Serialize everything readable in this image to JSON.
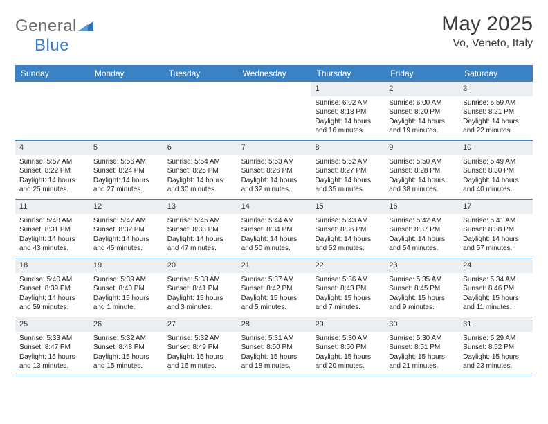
{
  "logo": {
    "part1": "General",
    "part2": "Blue"
  },
  "title": "May 2025",
  "location": "Vo, Veneto, Italy",
  "header_bg": "#3b82c4",
  "daynum_bg": "#eceff1",
  "border_color": "#3b82c4",
  "weekdays": [
    "Sunday",
    "Monday",
    "Tuesday",
    "Wednesday",
    "Thursday",
    "Friday",
    "Saturday"
  ],
  "cells": [
    {
      "day": "",
      "lines": []
    },
    {
      "day": "",
      "lines": []
    },
    {
      "day": "",
      "lines": []
    },
    {
      "day": "",
      "lines": []
    },
    {
      "day": "1",
      "lines": [
        "Sunrise: 6:02 AM",
        "Sunset: 8:18 PM",
        "Daylight: 14 hours",
        "and 16 minutes."
      ]
    },
    {
      "day": "2",
      "lines": [
        "Sunrise: 6:00 AM",
        "Sunset: 8:20 PM",
        "Daylight: 14 hours",
        "and 19 minutes."
      ]
    },
    {
      "day": "3",
      "lines": [
        "Sunrise: 5:59 AM",
        "Sunset: 8:21 PM",
        "Daylight: 14 hours",
        "and 22 minutes."
      ]
    },
    {
      "day": "4",
      "lines": [
        "Sunrise: 5:57 AM",
        "Sunset: 8:22 PM",
        "Daylight: 14 hours",
        "and 25 minutes."
      ]
    },
    {
      "day": "5",
      "lines": [
        "Sunrise: 5:56 AM",
        "Sunset: 8:24 PM",
        "Daylight: 14 hours",
        "and 27 minutes."
      ]
    },
    {
      "day": "6",
      "lines": [
        "Sunrise: 5:54 AM",
        "Sunset: 8:25 PM",
        "Daylight: 14 hours",
        "and 30 minutes."
      ]
    },
    {
      "day": "7",
      "lines": [
        "Sunrise: 5:53 AM",
        "Sunset: 8:26 PM",
        "Daylight: 14 hours",
        "and 32 minutes."
      ]
    },
    {
      "day": "8",
      "lines": [
        "Sunrise: 5:52 AM",
        "Sunset: 8:27 PM",
        "Daylight: 14 hours",
        "and 35 minutes."
      ]
    },
    {
      "day": "9",
      "lines": [
        "Sunrise: 5:50 AM",
        "Sunset: 8:28 PM",
        "Daylight: 14 hours",
        "and 38 minutes."
      ]
    },
    {
      "day": "10",
      "lines": [
        "Sunrise: 5:49 AM",
        "Sunset: 8:30 PM",
        "Daylight: 14 hours",
        "and 40 minutes."
      ]
    },
    {
      "day": "11",
      "lines": [
        "Sunrise: 5:48 AM",
        "Sunset: 8:31 PM",
        "Daylight: 14 hours",
        "and 43 minutes."
      ]
    },
    {
      "day": "12",
      "lines": [
        "Sunrise: 5:47 AM",
        "Sunset: 8:32 PM",
        "Daylight: 14 hours",
        "and 45 minutes."
      ]
    },
    {
      "day": "13",
      "lines": [
        "Sunrise: 5:45 AM",
        "Sunset: 8:33 PM",
        "Daylight: 14 hours",
        "and 47 minutes."
      ]
    },
    {
      "day": "14",
      "lines": [
        "Sunrise: 5:44 AM",
        "Sunset: 8:34 PM",
        "Daylight: 14 hours",
        "and 50 minutes."
      ]
    },
    {
      "day": "15",
      "lines": [
        "Sunrise: 5:43 AM",
        "Sunset: 8:36 PM",
        "Daylight: 14 hours",
        "and 52 minutes."
      ]
    },
    {
      "day": "16",
      "lines": [
        "Sunrise: 5:42 AM",
        "Sunset: 8:37 PM",
        "Daylight: 14 hours",
        "and 54 minutes."
      ]
    },
    {
      "day": "17",
      "lines": [
        "Sunrise: 5:41 AM",
        "Sunset: 8:38 PM",
        "Daylight: 14 hours",
        "and 57 minutes."
      ]
    },
    {
      "day": "18",
      "lines": [
        "Sunrise: 5:40 AM",
        "Sunset: 8:39 PM",
        "Daylight: 14 hours",
        "and 59 minutes."
      ]
    },
    {
      "day": "19",
      "lines": [
        "Sunrise: 5:39 AM",
        "Sunset: 8:40 PM",
        "Daylight: 15 hours",
        "and 1 minute."
      ]
    },
    {
      "day": "20",
      "lines": [
        "Sunrise: 5:38 AM",
        "Sunset: 8:41 PM",
        "Daylight: 15 hours",
        "and 3 minutes."
      ]
    },
    {
      "day": "21",
      "lines": [
        "Sunrise: 5:37 AM",
        "Sunset: 8:42 PM",
        "Daylight: 15 hours",
        "and 5 minutes."
      ]
    },
    {
      "day": "22",
      "lines": [
        "Sunrise: 5:36 AM",
        "Sunset: 8:43 PM",
        "Daylight: 15 hours",
        "and 7 minutes."
      ]
    },
    {
      "day": "23",
      "lines": [
        "Sunrise: 5:35 AM",
        "Sunset: 8:45 PM",
        "Daylight: 15 hours",
        "and 9 minutes."
      ]
    },
    {
      "day": "24",
      "lines": [
        "Sunrise: 5:34 AM",
        "Sunset: 8:46 PM",
        "Daylight: 15 hours",
        "and 11 minutes."
      ]
    },
    {
      "day": "25",
      "lines": [
        "Sunrise: 5:33 AM",
        "Sunset: 8:47 PM",
        "Daylight: 15 hours",
        "and 13 minutes."
      ]
    },
    {
      "day": "26",
      "lines": [
        "Sunrise: 5:32 AM",
        "Sunset: 8:48 PM",
        "Daylight: 15 hours",
        "and 15 minutes."
      ]
    },
    {
      "day": "27",
      "lines": [
        "Sunrise: 5:32 AM",
        "Sunset: 8:49 PM",
        "Daylight: 15 hours",
        "and 16 minutes."
      ]
    },
    {
      "day": "28",
      "lines": [
        "Sunrise: 5:31 AM",
        "Sunset: 8:50 PM",
        "Daylight: 15 hours",
        "and 18 minutes."
      ]
    },
    {
      "day": "29",
      "lines": [
        "Sunrise: 5:30 AM",
        "Sunset: 8:50 PM",
        "Daylight: 15 hours",
        "and 20 minutes."
      ]
    },
    {
      "day": "30",
      "lines": [
        "Sunrise: 5:30 AM",
        "Sunset: 8:51 PM",
        "Daylight: 15 hours",
        "and 21 minutes."
      ]
    },
    {
      "day": "31",
      "lines": [
        "Sunrise: 5:29 AM",
        "Sunset: 8:52 PM",
        "Daylight: 15 hours",
        "and 23 minutes."
      ]
    }
  ]
}
